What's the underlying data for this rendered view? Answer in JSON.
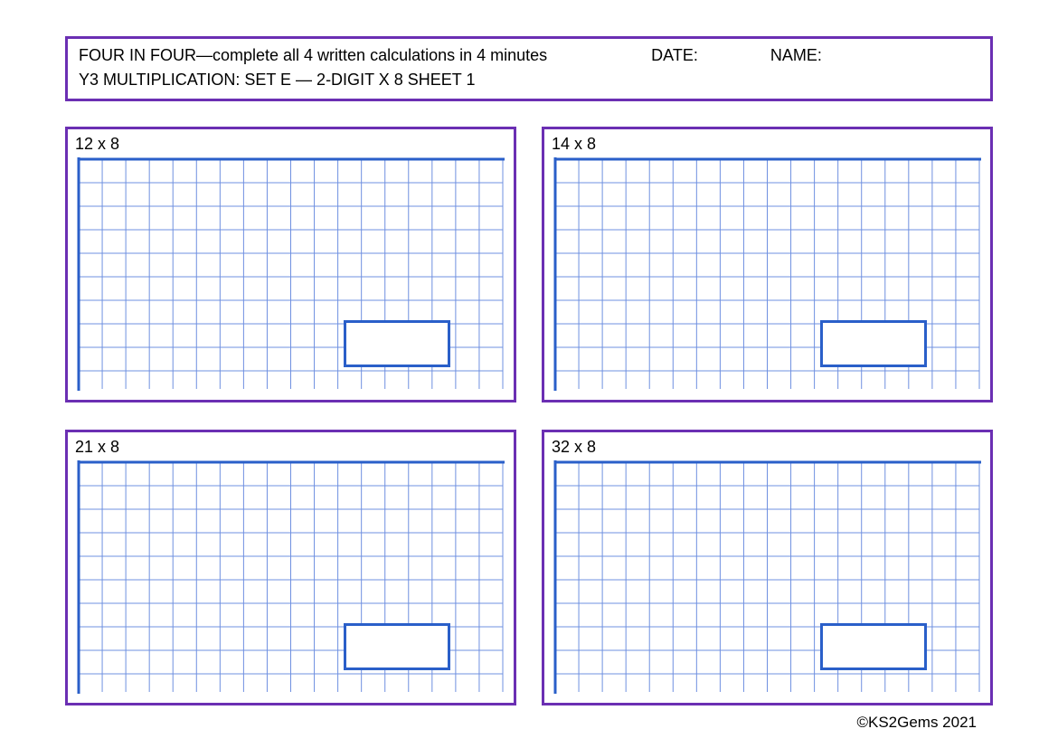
{
  "header": {
    "title": "FOUR IN FOUR—complete all 4 written calculations in 4 minutes",
    "date_label": "DATE:",
    "name_label": "NAME:",
    "subtitle": "Y3 MULTIPLICATION: SET E — 2-DIGIT X 8  SHEET 1"
  },
  "panels": [
    {
      "label": "12 x 8"
    },
    {
      "label": "14 x 8"
    },
    {
      "label": "21 x 8"
    },
    {
      "label": "32 x 8"
    }
  ],
  "grid": {
    "cell_size": 26,
    "cols": 18,
    "rows_full": 8,
    "line_color": "#6f90e0",
    "axis_color": "#2a5fc9",
    "axis_width": 3,
    "line_width": 1
  },
  "colors": {
    "border_purple": "#6b2fb3",
    "answer_box_border": "#2a5fc9",
    "background": "#ffffff",
    "text": "#000000"
  },
  "footer": {
    "text": "©KS2Gems 2021"
  }
}
